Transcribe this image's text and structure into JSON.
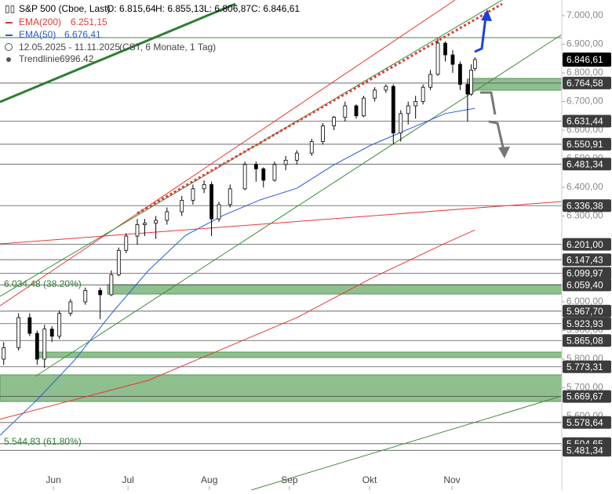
{
  "header": {
    "title": "S&P 500 (Cboe, Last)",
    "open": "O: 6.815,64",
    "high": "H: 6.855,13",
    "low": "L: 6.806,87",
    "close": "C: 6.846,61",
    "range": "12.05.2025 - 11.11.2025",
    "info": "(CST, 6 Monate, 1 Tag)"
  },
  "chart_data": {
    "type": "candlestick",
    "x": [
      1,
      5,
      8,
      10,
      12,
      14,
      16,
      19,
      23,
      27,
      30,
      32,
      34,
      37,
      39,
      42,
      45,
      49,
      52,
      55,
      57,
      59,
      62,
      66,
      69,
      71,
      74,
      77,
      80,
      84,
      87,
      90,
      93,
      96,
      98,
      101,
      104,
      106,
      108,
      110,
      112,
      114,
      116,
      118,
      120,
      122,
      124,
      126,
      127,
      128
    ],
    "open": [
      5800,
      5840,
      5945,
      5890,
      5800,
      5905,
      5880,
      5960,
      6000,
      6040,
      6025,
      6095,
      6180,
      6230,
      6270,
      6275,
      6285,
      6315,
      6355,
      6395,
      6410,
      6290,
      6340,
      6395,
      6480,
      6465,
      6425,
      6480,
      6495,
      6520,
      6560,
      6615,
      6645,
      6685,
      6650,
      6712,
      6740,
      6753,
      6590,
      6658,
      6685,
      6700,
      6750,
      6795,
      6904,
      6863,
      6830,
      6760,
      6726,
      6815.64
    ],
    "high": [
      5860,
      5960,
      5960,
      5900,
      5920,
      5915,
      5970,
      6010,
      6050,
      6050,
      6110,
      6190,
      6240,
      6290,
      6290,
      6300,
      6330,
      6370,
      6410,
      6425,
      6420,
      6350,
      6410,
      6490,
      6490,
      6470,
      6490,
      6510,
      6530,
      6570,
      6625,
      6650,
      6700,
      6690,
      6720,
      6750,
      6760,
      6760,
      6670,
      6700,
      6720,
      6760,
      6810,
      6920,
      6910,
      6880,
      6840,
      6780,
      6830,
      6855.13
    ],
    "low": [
      5780,
      5830,
      5880,
      5780,
      5770,
      5860,
      5870,
      5950,
      5990,
      5940,
      6020,
      6090,
      6170,
      6200,
      6230,
      6220,
      6270,
      6300,
      6340,
      6380,
      6230,
      6280,
      6330,
      6390,
      6420,
      6400,
      6420,
      6460,
      6480,
      6510,
      6550,
      6600,
      6630,
      6640,
      6645,
      6700,
      6730,
      6550,
      6560,
      6620,
      6640,
      6690,
      6740,
      6790,
      6840,
      6800,
      6740,
      6630,
      6720,
      6806.87
    ],
    "close": [
      5840,
      5945,
      5890,
      5800,
      5905,
      5880,
      5960,
      6000,
      6040,
      6025,
      6095,
      6180,
      6230,
      6270,
      6275,
      6285,
      6315,
      6355,
      6395,
      6410,
      6290,
      6340,
      6395,
      6480,
      6465,
      6425,
      6480,
      6495,
      6520,
      6560,
      6615,
      6645,
      6685,
      6650,
      6712,
      6740,
      6753,
      6590,
      6658,
      6685,
      6700,
      6750,
      6795,
      6904,
      6863,
      6830,
      6760,
      6726,
      6810,
      6846.61
    ],
    "color_up": "#ffffff",
    "color_down": "#000000",
    "series": [
      {
        "name": "EMA(200)",
        "value_label": "6.251,15",
        "color": "#e53935",
        "x": [
          0,
          20,
          40,
          60,
          80,
          100,
          120,
          128
        ],
        "values": [
          5590,
          5658,
          5726,
          5836,
          5945,
          6082,
          6205,
          6251.15
        ]
      },
      {
        "name": "EMA(50)",
        "value_label": "6.676,41",
        "color": "#2a5bd7",
        "x": [
          0,
          10,
          20,
          30,
          40,
          50,
          60,
          70,
          80,
          90,
          100,
          110,
          120,
          128
        ],
        "values": [
          5534,
          5658,
          5795,
          5959,
          6110,
          6233,
          6301,
          6356,
          6397,
          6479,
          6548,
          6603,
          6658,
          6676.41
        ]
      }
    ],
    "trendline": {
      "name": "Trendlinie",
      "value_label": "6996.42"
    },
    "xlim": [
      0,
      151.4
    ],
    "xticks": [
      {
        "value": 14.4,
        "label": "Jun"
      },
      {
        "value": 34.5,
        "label": "Jul"
      },
      {
        "value": 56.4,
        "label": "Aug"
      },
      {
        "value": 78,
        "label": "Sep"
      },
      {
        "value": 99.6,
        "label": "Okt"
      },
      {
        "value": 121.8,
        "label": "Nov"
      }
    ],
    "ylim": [
      5342.47,
      7054.79
    ],
    "yticks": [
      {
        "value": 5500,
        "label": "5.500,00"
      },
      {
        "value": 5600,
        "label": "5.600,00"
      },
      {
        "value": 5700,
        "label": "5.700,00"
      },
      {
        "value": 5800,
        "label": "5.800,00"
      },
      {
        "value": 5900,
        "label": "5.900,00"
      },
      {
        "value": 6000,
        "label": "6.000,00"
      },
      {
        "value": 6100,
        "label": "6.100,00"
      },
      {
        "value": 6200,
        "label": "6.200,00"
      },
      {
        "value": 6300,
        "label": "6.300,00"
      },
      {
        "value": 6400,
        "label": "6.400,00"
      },
      {
        "value": 6500,
        "label": "6.500,00"
      },
      {
        "value": 6600,
        "label": "6.600,00"
      },
      {
        "value": 6700,
        "label": "6.700,00"
      },
      {
        "value": 6800,
        "label": "6.800,00"
      },
      {
        "value": 6900,
        "label": "6.900,00"
      },
      {
        "value": 7000,
        "label": "7.000,00"
      }
    ],
    "levels": [
      {
        "value": 6764.58,
        "label": "6.764,58"
      },
      {
        "value": 6631.44,
        "label": "6.631,44"
      },
      {
        "value": 6550.91,
        "label": "6.550,91"
      },
      {
        "value": 6481.34,
        "label": "6.481,34"
      },
      {
        "value": 6336.38,
        "label": "6.336,38"
      },
      {
        "value": 6201.0,
        "label": "6.201,00"
      },
      {
        "value": 6147.43,
        "label": "6.147,43"
      },
      {
        "value": 6099.97,
        "label": "6.099,97"
      },
      {
        "value": 6059.4,
        "label": "6.059,40"
      },
      {
        "value": 5967.7,
        "label": "5.967,70"
      },
      {
        "value": 5923.93,
        "label": "5.923,93"
      },
      {
        "value": 5865.08,
        "label": "5.865,08"
      },
      {
        "value": 5773.31,
        "label": "5.773,31"
      },
      {
        "value": 5669.67,
        "label": "5.669,67"
      },
      {
        "value": 5578.64,
        "label": "5.578,64"
      },
      {
        "value": 5504.65,
        "label": "5.504,65"
      },
      {
        "value": 5481.34,
        "label": "5.481,34"
      }
    ],
    "last_price": {
      "value": 6846.61,
      "label": "6.846,61"
    },
    "annotations": [
      "6.034,48 (38.20%)",
      "5.544,83 (61.80%)"
    ]
  }
}
